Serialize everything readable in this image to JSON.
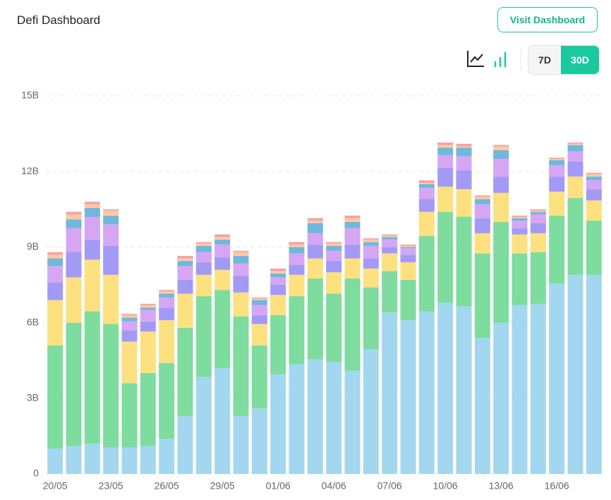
{
  "header": {
    "title": "Defi Dashboard",
    "button": "Visit Dashboard"
  },
  "controls": {
    "ranges": [
      "7D",
      "30D"
    ]
  },
  "chart_data": {
    "type": "stacked-bar",
    "categories": [
      "20/05",
      null,
      null,
      "23/05",
      null,
      null,
      "26/05",
      null,
      null,
      "29/05",
      null,
      null,
      "01/06",
      null,
      null,
      "04/06",
      null,
      null,
      "07/06",
      null,
      null,
      "10/06",
      null,
      null,
      "13/06",
      null,
      null,
      "16/06",
      null,
      null
    ],
    "ylim": [
      0,
      15
    ],
    "yticks": [
      0,
      {
        "value": 3,
        "label": "3B"
      },
      {
        "value": 6,
        "label": "6B"
      },
      {
        "value": 9,
        "label": "9B"
      },
      {
        "value": 12,
        "label": "12B"
      },
      {
        "value": 15,
        "label": "15B"
      }
    ],
    "grid": true,
    "series": [
      {
        "color": "#a3d7f0",
        "values": [
          1.0,
          1.1,
          1.2,
          1.05,
          1.05,
          1.1,
          1.4,
          2.3,
          3.85,
          4.2,
          2.3,
          2.6,
          3.95,
          4.35,
          4.55,
          4.45,
          4.1,
          4.95,
          6.4,
          6.1,
          6.45,
          6.8,
          6.65,
          5.4,
          6.0,
          6.7,
          6.75,
          7.55,
          7.9,
          7.9
        ]
      },
      {
        "color": "#7ddc9e",
        "values": [
          4.1,
          4.9,
          5.25,
          4.9,
          2.55,
          2.9,
          3.0,
          3.5,
          3.2,
          3.1,
          3.95,
          2.5,
          2.35,
          2.7,
          3.2,
          2.7,
          3.65,
          2.45,
          1.65,
          1.6,
          3.0,
          3.6,
          3.55,
          3.35,
          4.0,
          2.05,
          2.05,
          2.7,
          3.05,
          2.15
        ]
      },
      {
        "color": "#fde07f",
        "values": [
          1.8,
          1.8,
          2.05,
          1.95,
          1.65,
          1.65,
          1.7,
          1.35,
          0.85,
          0.8,
          0.95,
          0.85,
          0.8,
          0.85,
          0.8,
          0.85,
          0.8,
          0.75,
          0.7,
          0.7,
          0.95,
          1.0,
          1.1,
          0.8,
          1.15,
          0.75,
          0.75,
          0.95,
          0.85,
          0.8
        ]
      },
      {
        "color": "#a39af5",
        "values": [
          0.7,
          1.0,
          0.8,
          1.15,
          0.45,
          0.4,
          0.5,
          0.55,
          0.5,
          0.5,
          0.65,
          0.35,
          0.4,
          0.4,
          0.55,
          0.45,
          0.55,
          0.4,
          0.25,
          0.3,
          0.5,
          0.75,
          0.75,
          0.6,
          0.65,
          0.25,
          0.4,
          0.6,
          0.6,
          0.45
        ]
      },
      {
        "color": "#d6a6f5",
        "values": [
          0.65,
          0.95,
          0.9,
          0.85,
          0.35,
          0.45,
          0.4,
          0.55,
          0.4,
          0.5,
          0.5,
          0.4,
          0.3,
          0.45,
          0.45,
          0.4,
          0.65,
          0.5,
          0.3,
          0.25,
          0.45,
          0.5,
          0.55,
          0.55,
          0.7,
          0.3,
          0.35,
          0.45,
          0.4,
          0.35
        ]
      },
      {
        "color": "#6fb8dc",
        "values": [
          0.3,
          0.35,
          0.35,
          0.35,
          0.15,
          0.1,
          0.15,
          0.2,
          0.25,
          0.2,
          0.3,
          0.2,
          0.15,
          0.25,
          0.4,
          0.2,
          0.25,
          0.15,
          0.1,
          0.05,
          0.15,
          0.3,
          0.35,
          0.2,
          0.35,
          0.1,
          0.1,
          0.2,
          0.25,
          0.15
        ]
      },
      {
        "color": "#fdc9a3",
        "values": [
          0.15,
          0.2,
          0.15,
          0.2,
          0.1,
          0.1,
          0.1,
          0.1,
          0.1,
          0.1,
          0.15,
          0.05,
          0.1,
          0.1,
          0.1,
          0.1,
          0.15,
          0.1,
          0.05,
          0.05,
          0.05,
          0.1,
          0.05,
          0.1,
          0.15,
          0.05,
          0.05,
          0.05,
          0.05,
          0.1
        ]
      },
      {
        "color": "#f8a0a0",
        "values": [
          0.1,
          0.1,
          0.1,
          0.05,
          0.05,
          0.05,
          0.05,
          0.1,
          0.05,
          0.1,
          0.05,
          0.05,
          0.1,
          0.1,
          0.1,
          0.05,
          0.1,
          0.05,
          0.05,
          0.05,
          0.1,
          0.1,
          0.1,
          0.05,
          0.05,
          0.05,
          0.05,
          0.05,
          0.05,
          0.05
        ]
      }
    ]
  }
}
